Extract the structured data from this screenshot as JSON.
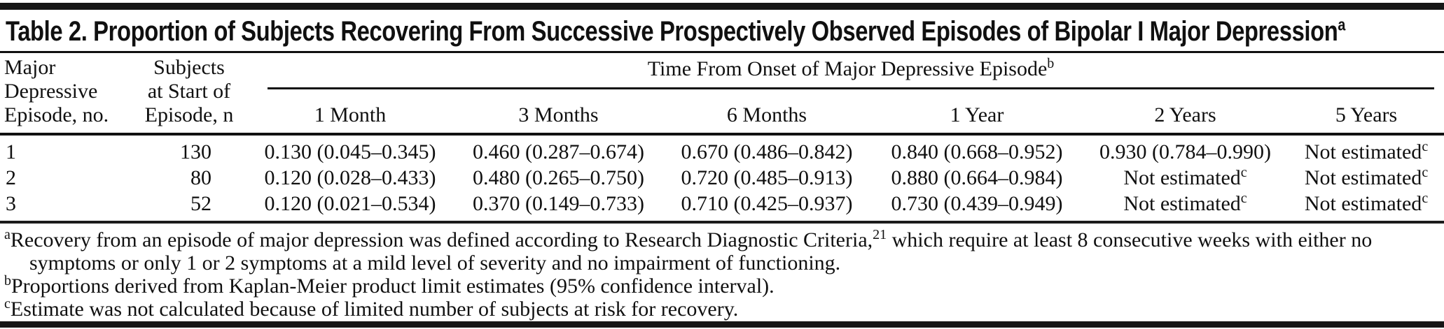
{
  "title": {
    "text": "Table 2. Proportion of Subjects Recovering From Successive Prospectively Observed Episodes of Bipolar I Major Depression",
    "sup": "a"
  },
  "table": {
    "stub_headers": {
      "episode": "Major\nDepressive\nEpisode, no.",
      "subjects": "Subjects\nat Start of\nEpisode, n"
    },
    "span_header": {
      "text": "Time From Onset of Major Depressive Episode",
      "sup": "b"
    },
    "time_columns": [
      "1 Month",
      "3 Months",
      "6 Months",
      "1 Year",
      "2 Years",
      "5 Years"
    ],
    "rows": [
      {
        "episode": "1",
        "n": "130",
        "values": [
          {
            "text": "0.130 (0.045–0.345)"
          },
          {
            "text": "0.460 (0.287–0.674)"
          },
          {
            "text": "0.670 (0.486–0.842)"
          },
          {
            "text": "0.840 (0.668–0.952)"
          },
          {
            "text": "0.930 (0.784–0.990)"
          },
          {
            "text": "Not estimated",
            "sup": "c"
          }
        ]
      },
      {
        "episode": "2",
        "n": "80",
        "values": [
          {
            "text": "0.120 (0.028–0.433)"
          },
          {
            "text": "0.480 (0.265–0.750)"
          },
          {
            "text": "0.720 (0.485–0.913)"
          },
          {
            "text": "0.880 (0.664–0.984)"
          },
          {
            "text": "Not estimated",
            "sup": "c"
          },
          {
            "text": "Not estimated",
            "sup": "c"
          }
        ]
      },
      {
        "episode": "3",
        "n": "52",
        "values": [
          {
            "text": "0.120 (0.021–0.534)"
          },
          {
            "text": "0.370 (0.149–0.733)"
          },
          {
            "text": "0.710 (0.425–0.937)"
          },
          {
            "text": "0.730 (0.439–0.949)"
          },
          {
            "text": "Not estimated",
            "sup": "c"
          },
          {
            "text": "Not estimated",
            "sup": "c"
          }
        ]
      }
    ]
  },
  "footnotes": [
    {
      "marker": "a",
      "parts": [
        {
          "text": "Recovery from an episode of major depression was defined according to Research Diagnostic Criteria,"
        },
        {
          "sup": "21"
        },
        {
          "text": " which require at least 8 consecutive weeks with either no symptoms or only 1 or 2 symptoms at a mild level of severity and no impairment of functioning."
        }
      ]
    },
    {
      "marker": "b",
      "parts": [
        {
          "text": "Proportions derived from Kaplan-Meier product limit estimates (95% confidence interval)."
        }
      ]
    },
    {
      "marker": "c",
      "parts": [
        {
          "text": "Estimate was not calculated because of limited number of subjects at risk for recovery."
        }
      ]
    }
  ],
  "colors": {
    "text": "#101010",
    "rule": "#161616",
    "background": "#ffffff"
  },
  "chart_data": {
    "type": "table",
    "title": "Table 2. Proportion of Subjects Recovering From Successive Prospectively Observed Episodes of Bipolar I Major Depression",
    "column_group_header": "Time From Onset of Major Depressive Episode",
    "columns": [
      "Major Depressive Episode, no.",
      "Subjects at Start of Episode, n",
      "1 Month",
      "3 Months",
      "6 Months",
      "1 Year",
      "2 Years",
      "5 Years"
    ],
    "rows": [
      [
        "1",
        "130",
        "0.130 (0.045–0.345)",
        "0.460 (0.287–0.674)",
        "0.670 (0.486–0.842)",
        "0.840 (0.668–0.952)",
        "0.930 (0.784–0.990)",
        "Not estimated"
      ],
      [
        "2",
        "80",
        "0.120 (0.028–0.433)",
        "0.480 (0.265–0.750)",
        "0.720 (0.485–0.913)",
        "0.880 (0.664–0.984)",
        "Not estimated",
        "Not estimated"
      ],
      [
        "3",
        "52",
        "0.120 (0.021–0.534)",
        "0.370 (0.149–0.733)",
        "0.710 (0.425–0.937)",
        "0.730 (0.439–0.949)",
        "Not estimated",
        "Not estimated"
      ]
    ]
  }
}
